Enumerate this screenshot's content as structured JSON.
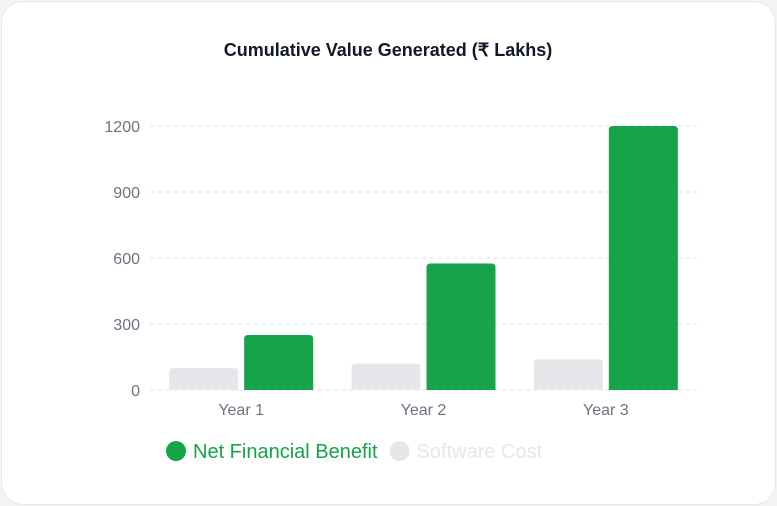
{
  "chart_data": {
    "type": "bar",
    "title": "Cumulative Value Generated (₹ Lakhs)",
    "categories": [
      "Year 1",
      "Year 2",
      "Year 3"
    ],
    "series": [
      {
        "name": "Software Cost",
        "values": [
          100,
          120,
          140
        ],
        "color": "#e5e7eb"
      },
      {
        "name": "Net Financial Benefit",
        "values": [
          250,
          575,
          1200
        ],
        "color": "#16a34a"
      }
    ],
    "legend_order": [
      1,
      0
    ],
    "yticks": [
      0,
      300,
      600,
      900,
      1200
    ],
    "ylim": [
      0,
      1200
    ],
    "grid": true,
    "legend_placement": "bottom-left",
    "xlabel": "",
    "ylabel": ""
  }
}
